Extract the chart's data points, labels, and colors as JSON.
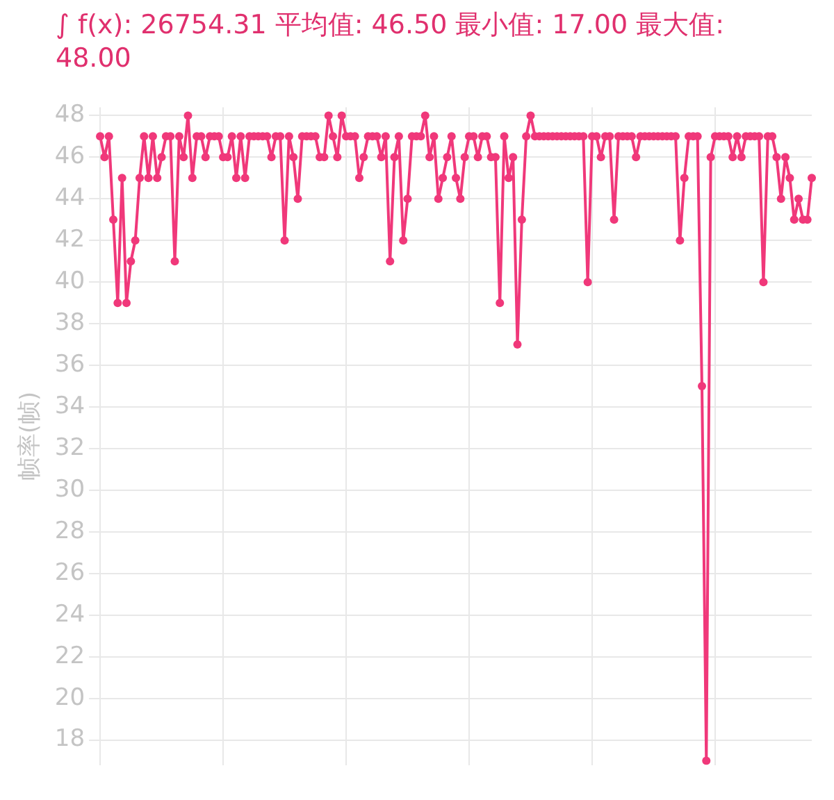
{
  "chart_data": {
    "type": "line",
    "title": "∫ f(x): 26754.31 平均值: 46.50 最小值: 17.00 最大值: 48.00",
    "ylabel": "帧率(帧)",
    "categories": [
      null,
      null,
      null,
      null,
      null,
      null,
      null,
      null,
      null,
      null,
      null,
      null,
      null,
      null,
      null,
      null,
      null,
      null,
      null,
      null,
      null,
      null,
      null,
      null,
      null,
      null,
      null,
      null,
      null,
      null,
      null,
      null,
      null,
      null,
      null,
      null,
      null,
      null,
      null,
      null,
      null,
      null,
      null,
      null,
      null,
      null,
      null,
      null,
      null,
      null,
      null,
      null,
      null,
      null,
      null,
      null,
      null,
      null,
      null,
      null,
      null,
      null,
      null,
      null,
      null,
      null,
      null,
      null,
      null,
      null,
      null,
      null,
      null,
      null,
      null,
      null,
      null,
      null,
      null,
      null,
      null,
      null,
      null,
      null,
      null,
      null,
      null,
      null,
      null,
      null,
      null,
      null,
      null,
      null,
      null,
      null,
      null,
      null,
      null,
      null,
      null,
      null,
      null,
      null,
      null,
      null,
      null,
      null,
      null,
      null,
      null,
      null,
      null,
      null,
      null,
      null,
      null,
      null,
      null,
      null,
      null,
      null,
      null,
      null,
      null,
      null,
      null,
      null,
      null,
      null,
      null,
      null,
      null,
      null,
      null,
      null,
      null,
      null,
      null,
      null,
      null,
      null,
      null,
      null,
      null,
      null,
      null,
      null,
      null,
      null,
      null,
      null,
      null,
      null,
      null,
      null,
      null,
      null,
      null,
      null,
      null,
      null,
      null
    ],
    "series": [
      {
        "color": "#f0387a",
        "values": [
          47,
          46,
          47,
          43,
          39,
          45,
          39,
          41,
          42,
          45,
          47,
          45,
          47,
          45,
          46,
          47,
          47,
          41,
          47,
          46,
          48,
          45,
          47,
          47,
          46,
          47,
          47,
          47,
          46,
          46,
          47,
          45,
          47,
          45,
          47,
          47,
          47,
          47,
          47,
          46,
          47,
          47,
          42,
          47,
          46,
          44,
          47,
          47,
          47,
          47,
          46,
          46,
          48,
          47,
          46,
          48,
          47,
          47,
          47,
          45,
          46,
          47,
          47,
          47,
          46,
          47,
          41,
          46,
          47,
          42,
          44,
          47,
          47,
          47,
          48,
          46,
          47,
          44,
          45,
          46,
          47,
          45,
          44,
          46,
          47,
          47,
          46,
          47,
          47,
          46,
          46,
          39,
          47,
          45,
          46,
          37,
          43,
          47,
          48,
          47,
          47,
          47,
          47,
          47,
          47,
          47,
          47,
          47,
          47,
          47,
          47,
          40,
          47,
          47,
          46,
          47,
          47,
          43,
          47,
          47,
          47,
          47,
          46,
          47,
          47,
          47,
          47,
          47,
          47,
          47,
          47,
          47,
          42,
          45,
          47,
          47,
          47,
          35,
          17,
          46,
          47,
          47,
          47,
          47,
          46,
          47,
          46,
          47,
          47,
          47,
          47,
          40,
          47,
          47,
          46,
          44,
          46,
          45,
          43,
          44,
          43,
          43,
          45
        ]
      }
    ],
    "ylim": [
      16.8,
      48.4
    ],
    "yticks": [
      18,
      20,
      22,
      24,
      26,
      28,
      30,
      32,
      34,
      36,
      38,
      40,
      42,
      44,
      46,
      48
    ],
    "grid": true,
    "marker": "circle",
    "line_style": "solid",
    "tick_labels": "y",
    "legend": false
  }
}
